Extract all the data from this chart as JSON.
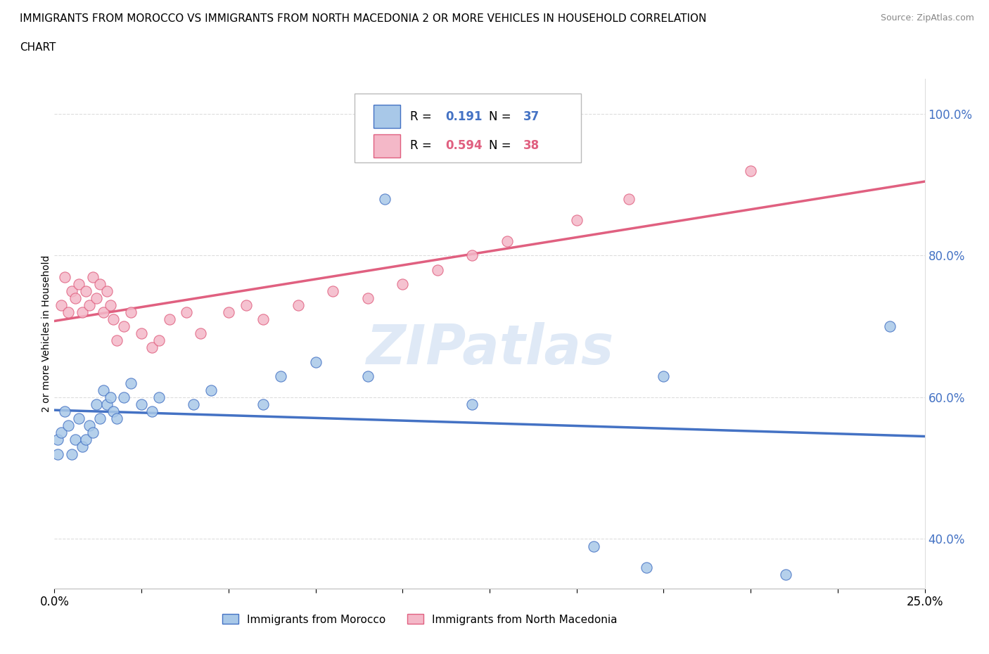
{
  "title": "IMMIGRANTS FROM MOROCCO VS IMMIGRANTS FROM NORTH MACEDONIA 2 OR MORE VEHICLES IN HOUSEHOLD CORRELATION\nCHART",
  "source": "Source: ZipAtlas.com",
  "ylabel_axis": "2 or more Vehicles in Household",
  "legend_label1": "Immigrants from Morocco",
  "legend_label2": "Immigrants from North Macedonia",
  "r1": 0.191,
  "n1": 37,
  "r2": 0.594,
  "n2": 38,
  "color_morocco": "#a8c8e8",
  "color_macedonia": "#f4b8c8",
  "color_morocco_line": "#4472c4",
  "color_macedonia_line": "#e06080",
  "color_right_axis": "#4472c4",
  "watermark": "ZIPatlas",
  "xmin": 0.0,
  "xmax": 0.25,
  "ymin": 0.33,
  "ymax": 1.05,
  "morocco_x": [
    0.001,
    0.001,
    0.002,
    0.003,
    0.004,
    0.005,
    0.006,
    0.007,
    0.008,
    0.009,
    0.01,
    0.011,
    0.012,
    0.013,
    0.014,
    0.015,
    0.016,
    0.017,
    0.018,
    0.02,
    0.022,
    0.025,
    0.028,
    0.03,
    0.04,
    0.045,
    0.06,
    0.065,
    0.075,
    0.09,
    0.095,
    0.12,
    0.155,
    0.17,
    0.175,
    0.21,
    0.24
  ],
  "morocco_y": [
    0.54,
    0.52,
    0.55,
    0.58,
    0.56,
    0.52,
    0.54,
    0.57,
    0.53,
    0.54,
    0.56,
    0.55,
    0.59,
    0.57,
    0.61,
    0.59,
    0.6,
    0.58,
    0.57,
    0.6,
    0.62,
    0.59,
    0.58,
    0.6,
    0.59,
    0.61,
    0.59,
    0.63,
    0.65,
    0.63,
    0.88,
    0.59,
    0.39,
    0.36,
    0.63,
    0.35,
    0.7
  ],
  "macedonia_x": [
    0.002,
    0.003,
    0.004,
    0.005,
    0.006,
    0.007,
    0.008,
    0.009,
    0.01,
    0.011,
    0.012,
    0.013,
    0.014,
    0.015,
    0.016,
    0.017,
    0.018,
    0.02,
    0.022,
    0.025,
    0.028,
    0.03,
    0.033,
    0.038,
    0.042,
    0.05,
    0.055,
    0.06,
    0.07,
    0.08,
    0.09,
    0.1,
    0.11,
    0.12,
    0.13,
    0.15,
    0.165,
    0.2
  ],
  "macedonia_y": [
    0.73,
    0.77,
    0.72,
    0.75,
    0.74,
    0.76,
    0.72,
    0.75,
    0.73,
    0.77,
    0.74,
    0.76,
    0.72,
    0.75,
    0.73,
    0.71,
    0.68,
    0.7,
    0.72,
    0.69,
    0.67,
    0.68,
    0.71,
    0.72,
    0.69,
    0.72,
    0.73,
    0.71,
    0.73,
    0.75,
    0.74,
    0.76,
    0.78,
    0.8,
    0.82,
    0.85,
    0.88,
    0.92
  ]
}
